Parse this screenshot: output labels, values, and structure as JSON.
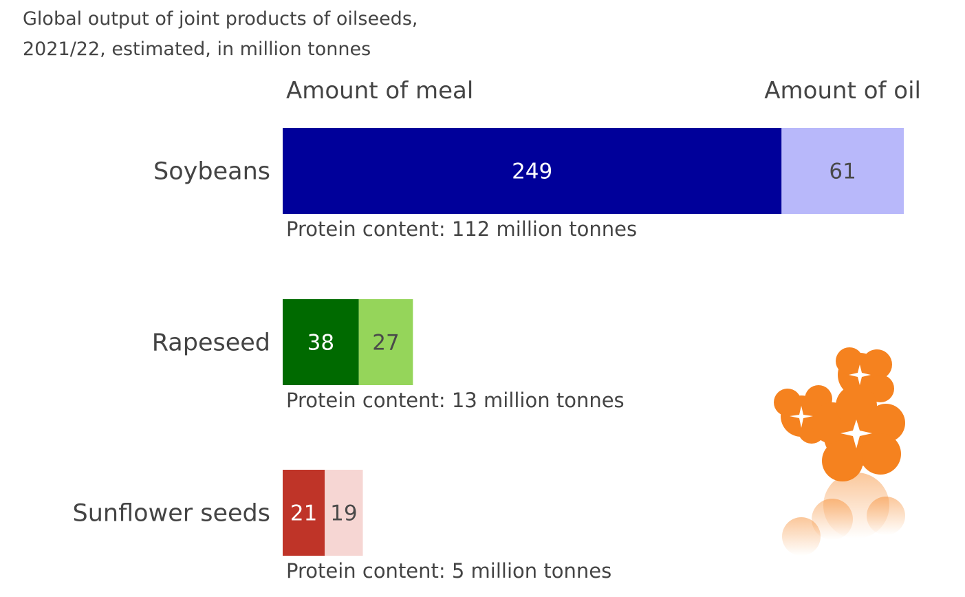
{
  "title_line1": "Global output of joint products of oilseeds,",
  "title_line2": "2021/22, estimated, in million tonnes",
  "chart_data": {
    "type": "bar",
    "orientation": "horizontal",
    "stacked": true,
    "title": "Global output of joint products of oilseeds, 2021/22, estimated, in million tonnes",
    "column_headers": [
      "Amount of meal",
      "Amount of oil"
    ],
    "categories": [
      "Soybeans",
      "Rapeseed",
      "Sunflower seeds"
    ],
    "series": [
      {
        "name": "Amount of meal",
        "values": [
          249,
          38,
          21
        ],
        "colors": [
          "#00009a",
          "#006a00",
          "#bf3428"
        ],
        "label_colors": [
          "#ffffff",
          "#ffffff",
          "#ffffff"
        ]
      },
      {
        "name": "Amount of oil",
        "values": [
          61,
          27,
          19
        ],
        "colors": [
          "#b8b8fa",
          "#95d55a",
          "#f6d6d3"
        ],
        "label_colors": [
          "#4a4a4a",
          "#4a4a4a",
          "#4a4a4a"
        ]
      }
    ],
    "annotations": [
      "Protein content: 112 million tonnes",
      "Protein content: 13 million tonnes",
      "Protein content: 5 million tonnes"
    ],
    "grid": false,
    "legend": "top"
  },
  "decoration": {
    "icon": "orange-flowers-icon",
    "color": "#f5821f"
  }
}
